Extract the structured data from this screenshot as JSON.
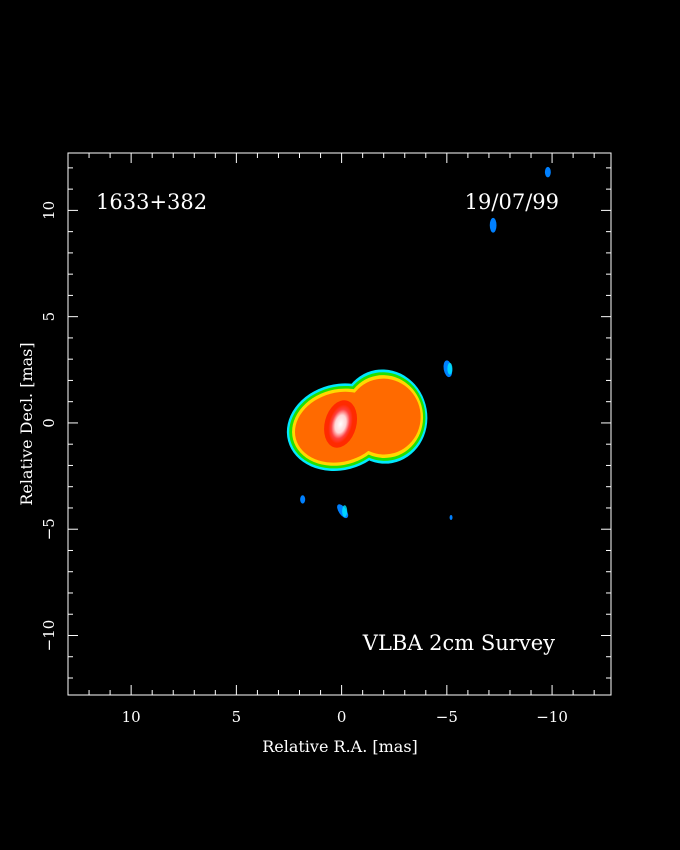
{
  "chart_data": {
    "type": "image",
    "source_name": "1633+382",
    "date": "19/07/99",
    "survey_label": "VLBA 2cm Survey",
    "xlabel": "Relative R.A. [mas]",
    "ylabel": "Relative Decl. [mas]",
    "xlim": [
      13.0,
      -12.8
    ],
    "ylim": [
      -12.8,
      12.7
    ],
    "x_ticks": [
      10,
      5,
      0,
      -5,
      -10
    ],
    "y_ticks": [
      10,
      5,
      0,
      -5,
      -10
    ],
    "x_tick_labels": [
      "10",
      "5",
      "0",
      "−5",
      "−10"
    ],
    "y_tick_labels": [
      "10",
      "5",
      "0",
      "−5",
      "−10"
    ],
    "colors": {
      "background": "#000000",
      "frame": "#ffffff",
      "outer": "#00e8ff",
      "green": "#22e000",
      "yellow": "#ffd800",
      "orange": "#ff6a00",
      "red": "#ff2a00",
      "peak": "#ffffff",
      "blue": "#0080ff"
    }
  }
}
